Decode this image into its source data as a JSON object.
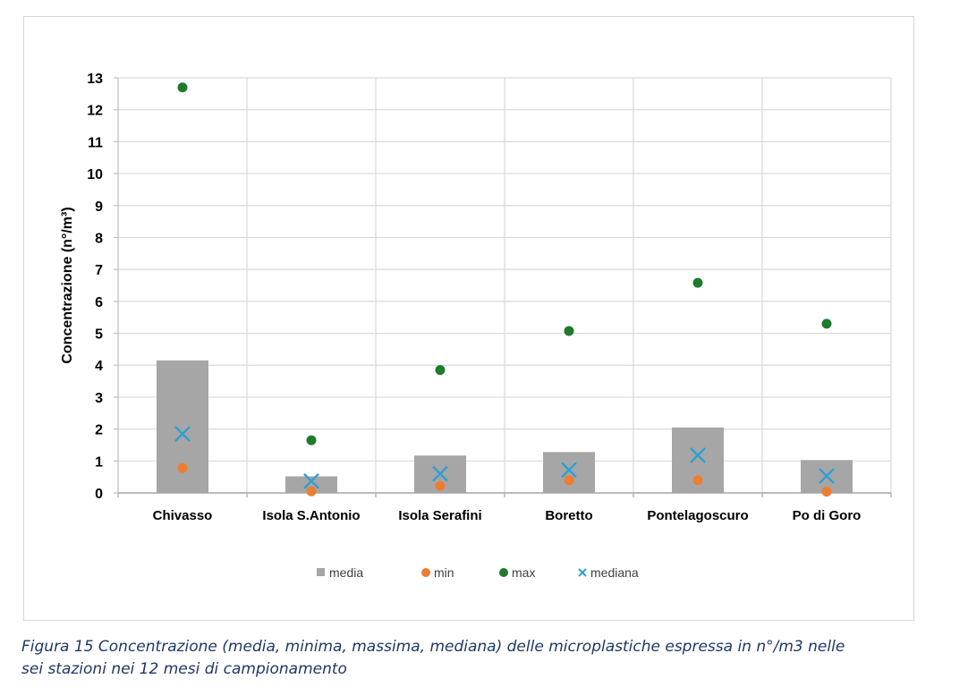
{
  "chart_data": {
    "type": "bar",
    "categories": [
      "Chivasso",
      "Isola S.Antonio",
      "Isola Serafini",
      "Boretto",
      "Pontelagoscuro",
      "Po di Goro"
    ],
    "series": [
      {
        "name": "media",
        "kind": "bar",
        "color": "#a6a6a6",
        "values": [
          4.15,
          0.52,
          1.17,
          1.28,
          2.05,
          1.03
        ]
      },
      {
        "name": "min",
        "kind": "marker-circle",
        "color": "#ed7d31",
        "values": [
          0.78,
          0.05,
          0.22,
          0.4,
          0.4,
          0.04
        ]
      },
      {
        "name": "max",
        "kind": "marker-circle",
        "color": "#1e7b2c",
        "values": [
          12.7,
          1.65,
          3.85,
          5.07,
          6.58,
          5.3
        ]
      },
      {
        "name": "mediana",
        "kind": "marker-x",
        "color": "#2e9fd1",
        "values": [
          1.85,
          0.37,
          0.6,
          0.72,
          1.18,
          0.53
        ]
      }
    ],
    "ylabel": "Concentrazione (n°/m³)",
    "ylim": [
      0,
      13
    ],
    "yticks": [
      "0",
      "1",
      "2",
      "3",
      "4",
      "5",
      "6",
      "7",
      "8",
      "9",
      "10",
      "11",
      "12",
      "13"
    ],
    "grid": true,
    "legend_position": "bottom"
  },
  "caption": {
    "line1": "Figura 15 Concentrazione (media, minima, massima, mediana) delle microplastiche espressa in n°/m3 nelle",
    "line2": "sei stazioni nei 12 mesi di campionamento"
  }
}
